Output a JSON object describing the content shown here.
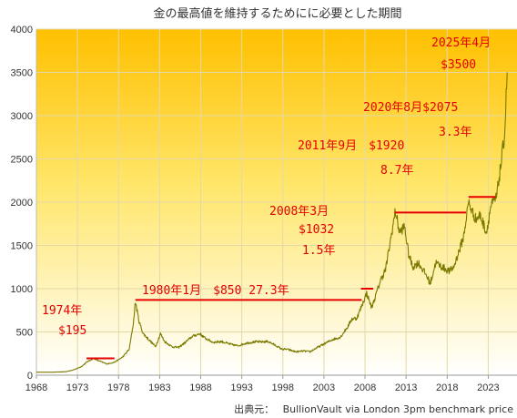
{
  "chart_data": {
    "type": "line",
    "title": "金の最高値を維持するためにに必要とした期間",
    "xlabel": "",
    "ylabel": "",
    "xlim": [
      1968,
      2026.5
    ],
    "ylim": [
      0,
      4000
    ],
    "xticks": [
      "1968",
      "1973",
      "1978",
      "1983",
      "1988",
      "1993",
      "1998",
      "2003",
      "2008",
      "2013",
      "2018",
      "2023"
    ],
    "yticks": [
      "0",
      "500",
      "1000",
      "1500",
      "2000",
      "2500",
      "3000",
      "3500",
      "4000"
    ],
    "grid": true,
    "series": [
      {
        "color": "#7b7a00",
        "x": [
          1968,
          1970,
          1971.5,
          1972.5,
          1973.5,
          1974.1,
          1974.95,
          1975.5,
          1976.6,
          1977.5,
          1978.5,
          1979.3,
          1979.8,
          1980.05,
          1980.5,
          1981,
          1981.6,
          1982.5,
          1983.1,
          1983.6,
          1984.5,
          1985.3,
          1986,
          1987,
          1987.9,
          1988.5,
          1989.5,
          1990.5,
          1991.5,
          1992.5,
          1993.5,
          1994.5,
          1995.5,
          1996.2,
          1997,
          1997.9,
          1998.5,
          1999.6,
          2000.5,
          2001.3,
          2002,
          2003,
          2004,
          2005,
          2005.9,
          2006.4,
          2007,
          2007.6,
          2008.2,
          2008.8,
          2009.3,
          2009.9,
          2010.5,
          2011,
          2011.7,
          2012.2,
          2012.8,
          2013.3,
          2013.8,
          2014.5,
          2015.5,
          2015.95,
          2016.6,
          2017.4,
          2018.3,
          2018.8,
          2019.5,
          2020,
          2020.6,
          2021,
          2021.5,
          2022,
          2022.8,
          2023.3,
          2024,
          2024.5,
          2025,
          2025.3
        ],
        "y": [
          35,
          35,
          40,
          60,
          100,
          150,
          195,
          170,
          130,
          150,
          210,
          300,
          600,
          850,
          620,
          480,
          420,
          330,
          480,
          390,
          330,
          320,
          370,
          450,
          480,
          430,
          380,
          390,
          360,
          340,
          370,
          385,
          385,
          390,
          350,
          300,
          300,
          270,
          280,
          270,
          310,
          360,
          410,
          440,
          560,
          650,
          660,
          800,
          950,
          780,
          920,
          1100,
          1220,
          1500,
          1900,
          1650,
          1720,
          1400,
          1250,
          1300,
          1150,
          1060,
          1300,
          1250,
          1200,
          1250,
          1450,
          1600,
          2000,
          1900,
          1800,
          1850,
          1650,
          1950,
          2050,
          2400,
          2800,
          3500
        ]
      }
    ],
    "annotations": [
      {
        "lines": [
          "1974年",
          "$195"
        ],
        "x": [
          1974.1,
          1977.5
        ],
        "y": 195
      },
      {
        "lines": [
          "1980年1月　$850 27.3年"
        ],
        "x": [
          1980.05,
          2007.6
        ],
        "y": 870
      },
      {
        "lines": [
          "2008年3月",
          "$1032",
          "1.5年"
        ],
        "x": [
          2007.5,
          2009
        ],
        "y": 1000
      },
      {
        "lines": [
          "2011年9月　$1920",
          "8.7年"
        ],
        "x": [
          2011.6,
          2020.3
        ],
        "y": 1880
      },
      {
        "lines": [
          "2020年8月$2075",
          "3.3年"
        ],
        "x": [
          2020.6,
          2023.9
        ],
        "y": 2060
      },
      {
        "lines": [
          "2025年4月",
          "$3500"
        ]
      }
    ]
  },
  "source_label": "出典元：",
  "source_text": "BullionVault via London 3pm benchmark price"
}
